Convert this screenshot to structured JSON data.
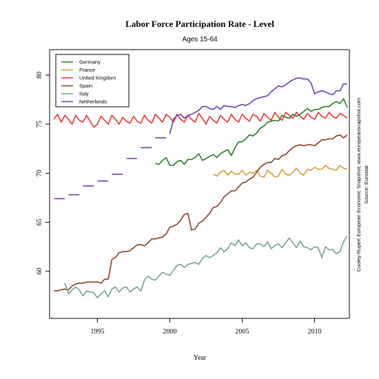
{
  "chart_data": {
    "type": "line",
    "title": "Labor Force Participation Rate - Level",
    "subtitle": "Ages 15-64",
    "xlabel": "Year",
    "ylabel": "",
    "xlim": [
      1991.7,
      2012.4
    ],
    "ylim": [
      55.2,
      82.6
    ],
    "xticks": [
      1995,
      2000,
      2005,
      2010
    ],
    "yticks": [
      60,
      65,
      70,
      75,
      80
    ],
    "legend_position": "top-left",
    "credits": [
      "Cooley-Rupert European Economic Snapshot; www.europeansnapshot.com",
      "Source: Eurostat"
    ],
    "series": [
      {
        "name": "Germany",
        "color": "#1e7a1e",
        "x": [
          1999.0,
          1999.25,
          1999.5,
          1999.75,
          2000.0,
          2000.25,
          2000.5,
          2000.75,
          2001.0,
          2001.25,
          2001.5,
          2001.75,
          2002.0,
          2002.25,
          2002.5,
          2002.75,
          2003.0,
          2003.25,
          2003.5,
          2003.75,
          2004.0,
          2004.25,
          2004.5,
          2004.75,
          2005.0,
          2005.25,
          2005.5,
          2005.75,
          2006.0,
          2006.25,
          2006.5,
          2006.75,
          2007.0,
          2007.25,
          2007.5,
          2007.75,
          2008.0,
          2008.25,
          2008.5,
          2008.75,
          2009.0,
          2009.25,
          2009.5,
          2009.75,
          2010.0,
          2010.25,
          2010.5,
          2010.75,
          2011.0,
          2011.25,
          2011.5,
          2011.75,
          2012.0,
          2012.25
        ],
        "y": [
          71.0,
          70.9,
          71.3,
          71.6,
          70.8,
          70.8,
          71.2,
          71.3,
          70.9,
          71.4,
          71.4,
          71.6,
          72.0,
          71.3,
          71.5,
          71.7,
          71.9,
          71.6,
          72.0,
          72.2,
          72.4,
          71.8,
          72.6,
          73.2,
          73.2,
          73.5,
          73.9,
          73.8,
          74.1,
          74.6,
          74.8,
          75.2,
          75.3,
          75.4,
          75.3,
          75.9,
          75.7,
          75.6,
          76.0,
          75.8,
          76.0,
          76.3,
          76.6,
          76.3,
          76.5,
          76.5,
          76.7,
          76.8,
          76.8,
          77.1,
          77.3,
          77.1,
          77.6,
          76.7
        ]
      },
      {
        "name": "France",
        "color": "#d89a2e",
        "x": [
          2003.0,
          2003.25,
          2003.5,
          2003.75,
          2004.0,
          2004.25,
          2004.5,
          2004.75,
          2005.0,
          2005.25,
          2005.5,
          2005.75,
          2006.0,
          2006.25,
          2006.5,
          2006.75,
          2007.0,
          2007.25,
          2007.5,
          2007.75,
          2008.0,
          2008.25,
          2008.5,
          2008.75,
          2009.0,
          2009.25,
          2009.5,
          2009.75,
          2010.0,
          2010.25,
          2010.5,
          2010.75,
          2011.0,
          2011.25,
          2011.5,
          2011.75,
          2012.0,
          2012.25
        ],
        "y": [
          69.9,
          69.7,
          70.1,
          70.3,
          69.8,
          70.2,
          69.9,
          69.9,
          70.3,
          69.8,
          70.1,
          70.0,
          70.3,
          69.7,
          69.6,
          70.3,
          70.0,
          69.6,
          69.7,
          70.4,
          69.9,
          69.8,
          70.1,
          70.5,
          70.0,
          69.8,
          70.4,
          70.3,
          70.6,
          70.4,
          70.4,
          70.8,
          70.5,
          70.4,
          70.3,
          70.8,
          70.5,
          70.4
        ]
      },
      {
        "name": "United Kingdom",
        "color": "#e8312a",
        "x": [
          1992.0,
          1992.25,
          1992.5,
          1992.75,
          1993.0,
          1993.25,
          1993.5,
          1993.75,
          1994.0,
          1994.25,
          1994.5,
          1994.75,
          1995.0,
          1995.25,
          1995.5,
          1995.75,
          1996.0,
          1996.25,
          1996.5,
          1996.75,
          1997.0,
          1997.25,
          1997.5,
          1997.75,
          1998.0,
          1998.25,
          1998.5,
          1998.75,
          1999.0,
          1999.25,
          1999.5,
          1999.75,
          2000.0,
          2000.25,
          2000.5,
          2000.75,
          2001.0,
          2001.25,
          2001.5,
          2001.75,
          2002.0,
          2002.25,
          2002.5,
          2002.75,
          2003.0,
          2003.25,
          2003.5,
          2003.75,
          2004.0,
          2004.25,
          2004.5,
          2004.75,
          2005.0,
          2005.25,
          2005.5,
          2005.75,
          2006.0,
          2006.25,
          2006.5,
          2006.75,
          2007.0,
          2007.25,
          2007.5,
          2007.75,
          2008.0,
          2008.25,
          2008.5,
          2008.75,
          2009.0,
          2009.25,
          2009.5,
          2009.75,
          2010.0,
          2010.25,
          2010.5,
          2010.75,
          2011.0,
          2011.25,
          2011.5,
          2011.75,
          2012.0,
          2012.25
        ],
        "y": [
          75.5,
          76.0,
          75.2,
          75.9,
          75.5,
          75.0,
          75.9,
          75.4,
          75.2,
          75.9,
          75.3,
          74.7,
          75.0,
          75.8,
          75.4,
          75.0,
          75.9,
          75.5,
          75.0,
          75.7,
          75.3,
          75.1,
          75.8,
          75.3,
          75.1,
          75.9,
          75.4,
          75.1,
          76.0,
          75.6,
          75.2,
          76.0,
          75.7,
          75.2,
          76.0,
          75.5,
          75.2,
          75.9,
          75.5,
          75.2,
          76.1,
          75.6,
          75.0,
          75.8,
          75.4,
          75.1,
          75.9,
          75.5,
          75.2,
          76.0,
          75.5,
          75.2,
          76.0,
          75.6,
          75.3,
          76.0,
          75.8,
          75.3,
          76.1,
          75.7,
          75.4,
          76.2,
          75.7,
          75.4,
          76.2,
          75.9,
          75.6,
          76.2,
          75.8,
          75.5,
          76.1,
          75.7,
          75.5,
          76.2,
          75.8,
          75.6,
          76.2,
          75.8,
          75.6,
          76.1,
          75.9,
          75.6
        ]
      },
      {
        "name": "Spain",
        "color": "#8b3a1e",
        "x": [
          1992.0,
          1992.25,
          1992.5,
          1992.75,
          1993.0,
          1993.25,
          1993.5,
          1993.75,
          1994.0,
          1994.25,
          1994.5,
          1994.75,
          1995.0,
          1995.25,
          1995.5,
          1995.75,
          1996.0,
          1996.25,
          1996.5,
          1996.75,
          1997.0,
          1997.25,
          1997.5,
          1997.75,
          1998.0,
          1998.25,
          1998.5,
          1998.75,
          1999.0,
          1999.25,
          1999.5,
          1999.75,
          2000.0,
          2000.25,
          2000.5,
          2000.75,
          2001.0,
          2001.25,
          2001.5,
          2001.75,
          2002.0,
          2002.25,
          2002.5,
          2002.75,
          2003.0,
          2003.25,
          2003.5,
          2003.75,
          2004.0,
          2004.25,
          2004.5,
          2004.75,
          2005.0,
          2005.25,
          2005.5,
          2005.75,
          2006.0,
          2006.25,
          2006.5,
          2006.75,
          2007.0,
          2007.25,
          2007.5,
          2007.75,
          2008.0,
          2008.25,
          2008.5,
          2008.75,
          2009.0,
          2009.25,
          2009.5,
          2009.75,
          2010.0,
          2010.25,
          2010.5,
          2010.75,
          2011.0,
          2011.25,
          2011.5,
          2011.75,
          2012.0,
          2012.25
        ],
        "y": [
          58.0,
          58.0,
          58.1,
          58.2,
          58.1,
          58.5,
          58.7,
          58.8,
          58.8,
          58.9,
          58.9,
          58.9,
          58.9,
          58.8,
          59.2,
          59.2,
          61.2,
          61.4,
          61.9,
          62.0,
          62.0,
          62.1,
          62.4,
          62.7,
          62.7,
          62.6,
          62.9,
          63.3,
          63.3,
          63.4,
          63.5,
          63.8,
          64.5,
          64.6,
          64.8,
          65.2,
          65.8,
          65.9,
          64.2,
          64.3,
          64.9,
          65.1,
          65.5,
          65.9,
          66.5,
          66.6,
          67.0,
          67.6,
          67.9,
          68.2,
          68.2,
          68.6,
          69.0,
          69.1,
          69.4,
          69.6,
          70.1,
          70.6,
          70.9,
          71.1,
          71.1,
          71.5,
          71.4,
          71.8,
          71.9,
          72.3,
          72.6,
          72.8,
          72.9,
          72.8,
          72.9,
          72.9,
          72.8,
          73.1,
          73.4,
          73.4,
          73.5,
          73.5,
          73.8,
          73.9,
          73.6,
          73.9
        ]
      },
      {
        "name": "Italy",
        "color": "#6fa08c",
        "x": [
          1992.75,
          1993.0,
          1993.25,
          1993.5,
          1993.75,
          1994.0,
          1994.25,
          1994.5,
          1994.75,
          1995.0,
          1995.25,
          1995.5,
          1995.75,
          1996.0,
          1996.25,
          1996.5,
          1996.75,
          1997.0,
          1997.25,
          1997.5,
          1997.75,
          1998.0,
          1998.25,
          1998.5,
          1998.75,
          1999.0,
          1999.25,
          1999.5,
          1999.75,
          2000.0,
          2000.25,
          2000.5,
          2000.75,
          2001.0,
          2001.25,
          2001.5,
          2001.75,
          2002.0,
          2002.25,
          2002.5,
          2002.75,
          2003.0,
          2003.25,
          2003.5,
          2003.75,
          2004.0,
          2004.25,
          2004.5,
          2004.75,
          2005.0,
          2005.25,
          2005.5,
          2005.75,
          2006.0,
          2006.25,
          2006.5,
          2006.75,
          2007.0,
          2007.25,
          2007.5,
          2007.75,
          2008.0,
          2008.25,
          2008.5,
          2008.75,
          2009.0,
          2009.25,
          2009.5,
          2009.75,
          2010.0,
          2010.25,
          2010.5,
          2010.75,
          2011.0,
          2011.25,
          2011.5,
          2011.75,
          2012.0,
          2012.25
        ],
        "y": [
          58.8,
          57.7,
          58.1,
          58.4,
          58.1,
          57.5,
          58.0,
          57.9,
          57.8,
          57.3,
          57.7,
          58.0,
          57.4,
          58.2,
          58.4,
          57.9,
          58.3,
          58.4,
          57.9,
          58.2,
          58.4,
          58.0,
          59.1,
          59.5,
          59.2,
          59.1,
          59.5,
          59.9,
          59.7,
          59.6,
          60.1,
          60.6,
          60.7,
          60.4,
          60.7,
          60.8,
          60.9,
          60.7,
          61.3,
          61.6,
          61.4,
          61.6,
          61.9,
          62.4,
          62.0,
          62.3,
          62.9,
          62.6,
          63.2,
          62.6,
          62.9,
          62.4,
          62.3,
          62.8,
          62.8,
          62.5,
          63.0,
          62.3,
          62.6,
          62.8,
          62.4,
          62.9,
          63.4,
          62.9,
          62.4,
          63.1,
          62.5,
          62.4,
          62.2,
          62.5,
          62.4,
          61.4,
          62.5,
          62.2,
          62.2,
          61.8,
          62.0,
          63.0,
          63.6
        ]
      },
      {
        "name": "Netherlands",
        "color": "#6a3ab0",
        "x": [
          2000.0,
          2000.25,
          2000.5,
          2000.75,
          2001.0,
          2001.25,
          2001.5,
          2001.75,
          2002.0,
          2002.25,
          2002.5,
          2002.75,
          2003.0,
          2003.25,
          2003.5,
          2003.75,
          2004.0,
          2004.25,
          2004.5,
          2004.75,
          2005.0,
          2005.25,
          2005.5,
          2005.75,
          2006.0,
          2006.25,
          2006.5,
          2006.75,
          2007.0,
          2007.25,
          2007.5,
          2007.75,
          2008.0,
          2008.25,
          2008.5,
          2008.75,
          2009.0,
          2009.25,
          2009.5,
          2009.75,
          2010.0,
          2010.25,
          2010.5,
          2010.75,
          2011.0,
          2011.25,
          2011.5,
          2011.75,
          2012.0,
          2012.25
        ],
        "y": [
          74.0,
          75.5,
          75.9,
          76.0,
          75.6,
          75.9,
          76.0,
          76.2,
          76.4,
          76.8,
          76.8,
          76.6,
          76.5,
          76.8,
          76.5,
          76.9,
          76.8,
          76.8,
          76.7,
          76.9,
          77.0,
          76.9,
          77.1,
          77.4,
          77.6,
          77.7,
          77.8,
          77.9,
          78.3,
          78.6,
          78.9,
          78.8,
          79.0,
          79.3,
          79.5,
          79.7,
          79.7,
          79.6,
          79.6,
          79.2,
          78.1,
          78.3,
          78.4,
          78.3,
          78.1,
          78.0,
          78.4,
          78.4,
          79.1,
          79.1
        ]
      },
      {
        "name": "",
        "color": "#6a3ab0",
        "style": "segments",
        "x": [
          1992.0,
          1992.75,
          1993.0,
          1993.75,
          1994.0,
          1994.75,
          1995.0,
          1995.75,
          1996.0,
          1996.75,
          1997.0,
          1997.75,
          1998.0,
          1998.75,
          1999.0,
          1999.75
        ],
        "y": [
          67.4,
          67.4,
          67.8,
          67.8,
          68.7,
          68.7,
          69.2,
          69.2,
          69.9,
          69.9,
          71.5,
          71.5,
          72.6,
          72.6,
          73.6,
          73.6
        ]
      }
    ]
  }
}
